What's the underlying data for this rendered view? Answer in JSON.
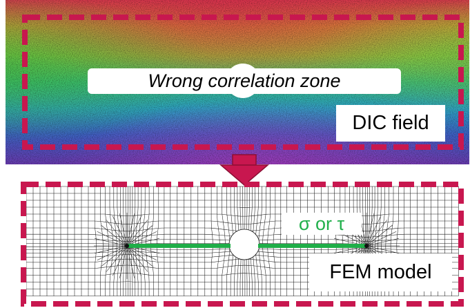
{
  "dic_panel": {
    "label": "DIC field",
    "zone_label": "Wrong correlation zone"
  },
  "arrow": {
    "icon": "down-arrow-icon"
  },
  "fem_panel": {
    "label": "FEM model",
    "stress_label": "σ or τ"
  },
  "colors": {
    "frame": "#c8174f",
    "stress_line": "#1fae48",
    "mesh": "#111111",
    "background": "#ffffff"
  }
}
